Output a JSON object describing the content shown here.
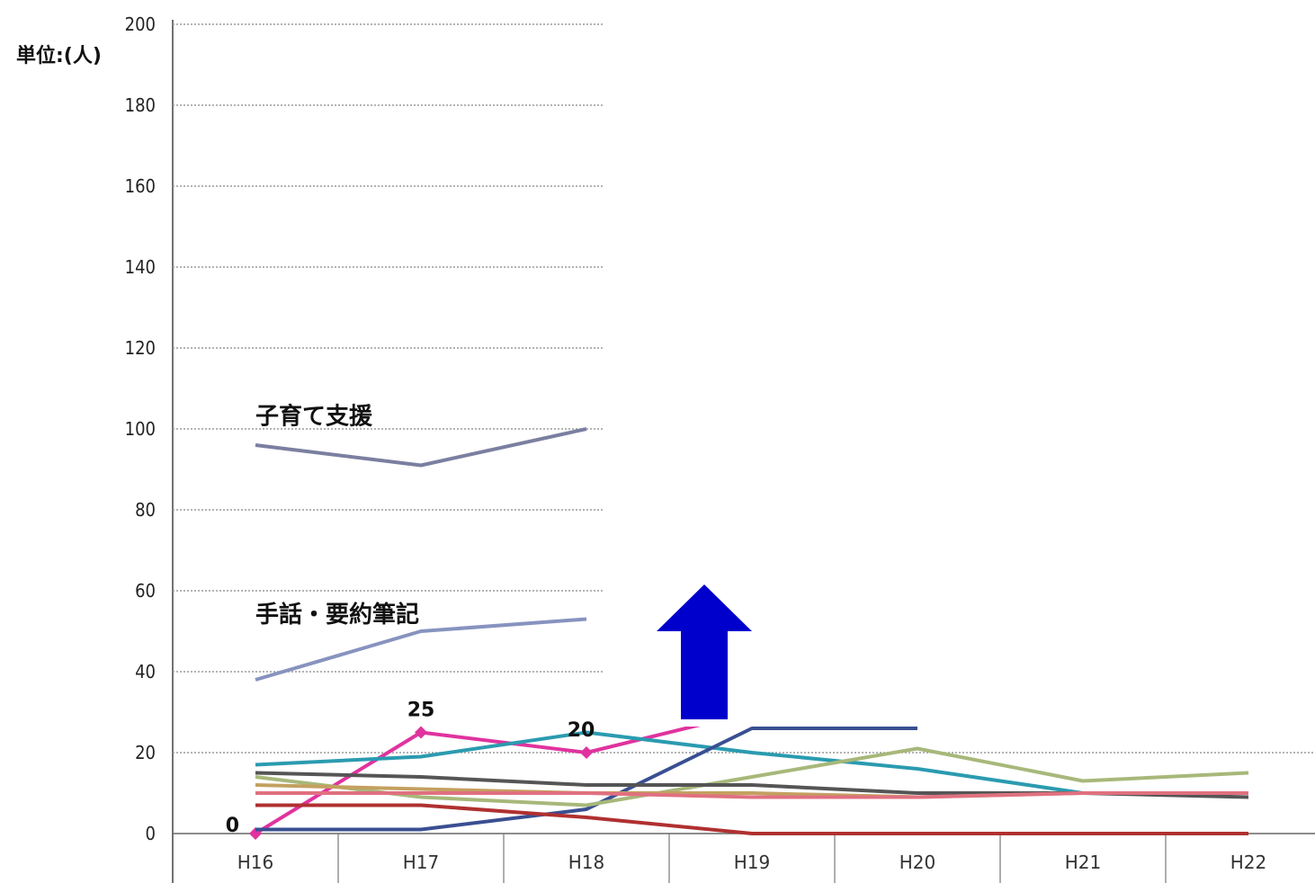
{
  "chart_data": {
    "type": "line",
    "unit_label": "単位:(人)",
    "categories": [
      "H16",
      "H17",
      "H18",
      "H19",
      "H20",
      "H21",
      "H22"
    ],
    "ylim": [
      0,
      200
    ],
    "yticks": [
      0,
      20,
      40,
      60,
      80,
      100,
      120,
      140,
      160,
      180,
      200
    ],
    "grid": true,
    "legend": "none",
    "series": [
      {
        "name": "子育て支援",
        "color": "#7b7fa0",
        "values": [
          96,
          91,
          100,
          null,
          null,
          null,
          null
        ]
      },
      {
        "name": "手話・要約筆記",
        "color": "#8793bf",
        "values": [
          38,
          50,
          53,
          null,
          null,
          null,
          null
        ]
      },
      {
        "name": "",
        "color": "#e0339e",
        "values": [
          0,
          25,
          20,
          30,
          null,
          null,
          null
        ],
        "markers": true
      },
      {
        "name": "",
        "color": "#2b9bb0",
        "values": [
          17,
          19,
          25,
          20,
          16,
          10,
          null
        ]
      },
      {
        "name": "",
        "color": "#3a4f92",
        "values": [
          1,
          1,
          6,
          26,
          26,
          null,
          null
        ]
      },
      {
        "name": "",
        "color": "#a7b87a",
        "values": [
          14,
          9,
          7,
          14,
          21,
          13,
          15
        ]
      },
      {
        "name": "",
        "color": "#555555",
        "values": [
          15,
          14,
          12,
          12,
          10,
          10,
          9
        ]
      },
      {
        "name": "",
        "color": "#c4a060",
        "values": [
          12,
          11,
          10,
          10,
          9,
          10,
          10
        ]
      },
      {
        "name": "",
        "color": "#e07080",
        "values": [
          10,
          10,
          10,
          9,
          9,
          10,
          10
        ]
      },
      {
        "name": "",
        "color": "#b03030",
        "values": [
          7,
          7,
          4,
          0,
          0,
          0,
          0
        ]
      }
    ],
    "annotations": [
      {
        "text": "子育て支援",
        "x": "H16",
        "y": 103
      },
      {
        "text": "手話・要約筆記",
        "x": "H16",
        "y": 54
      }
    ],
    "data_labels": [
      {
        "text": "0",
        "x": "H16",
        "y": 0
      },
      {
        "text": "25",
        "x": "H17",
        "y": 25
      },
      {
        "text": "20",
        "x": "H18",
        "y": 20
      }
    ]
  },
  "arrow": {
    "color": "#0000cc",
    "direction": "up"
  }
}
